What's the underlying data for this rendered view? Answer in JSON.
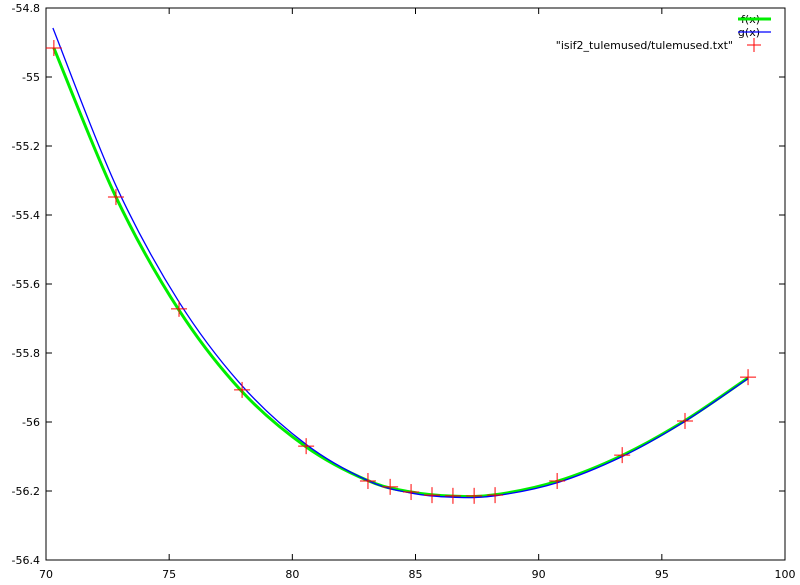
{
  "chart_data": {
    "type": "line",
    "title": "",
    "xlabel": "",
    "ylabel": "",
    "xlim": [
      70,
      100
    ],
    "ylim": [
      -56.4,
      -54.8
    ],
    "xticks": [
      70,
      75,
      80,
      85,
      90,
      95,
      100
    ],
    "yticks": [
      -56.4,
      -56.2,
      -56,
      -55.8,
      -55.6,
      -55.4,
      -55.2,
      -55,
      -54.8
    ],
    "xtick_labels": [
      "70",
      "75",
      "80",
      "85",
      "90",
      "95",
      "100"
    ],
    "ytick_labels": [
      "-56.4",
      "-56.2",
      "-56",
      "-55.8",
      "-55.6",
      "-55.4",
      "-55.2",
      "-55",
      "-54.8"
    ],
    "grid": false,
    "legend_position": "top-right",
    "series": [
      {
        "name": "f(x)",
        "style": "line",
        "color": "#00ee00",
        "x": [
          70.32,
          72.84,
          75.4,
          77.96,
          80.56,
          83.07,
          84.82,
          86.52,
          88.23,
          90.75,
          93.39,
          95.94,
          98.5
        ],
        "y": [
          -54.916,
          -55.348,
          -55.676,
          -55.912,
          -56.072,
          -56.17,
          -56.203,
          -56.215,
          -56.211,
          -56.172,
          -56.097,
          -55.996,
          -55.872
        ]
      },
      {
        "name": "g(x)",
        "style": "line",
        "color": "#0000ff",
        "x": [
          70.28,
          72.84,
          75.4,
          77.96,
          80.56,
          83.07,
          84.82,
          86.52,
          88.23,
          90.75,
          93.39,
          95.94,
          98.5
        ],
        "y": [
          -54.858,
          -55.315,
          -55.652,
          -55.895,
          -56.065,
          -56.17,
          -56.206,
          -56.218,
          -56.214,
          -56.176,
          -56.1,
          -55.998,
          -55.874
        ]
      },
      {
        "name": "\"isif2_tulemused/tulemused.txt\"",
        "style": "points",
        "marker": "+",
        "color": "#ff0000",
        "x": [
          70.32,
          72.84,
          75.4,
          77.96,
          80.56,
          83.07,
          83.97,
          84.82,
          85.67,
          86.52,
          87.38,
          88.23,
          90.75,
          93.39,
          95.94,
          98.5
        ],
        "y": [
          -54.916,
          -55.348,
          -55.672,
          -55.907,
          -56.07,
          -56.171,
          -56.188,
          -56.203,
          -56.212,
          -56.214,
          -56.214,
          -56.212,
          -56.171,
          -56.096,
          -55.997,
          -55.87
        ]
      }
    ]
  }
}
